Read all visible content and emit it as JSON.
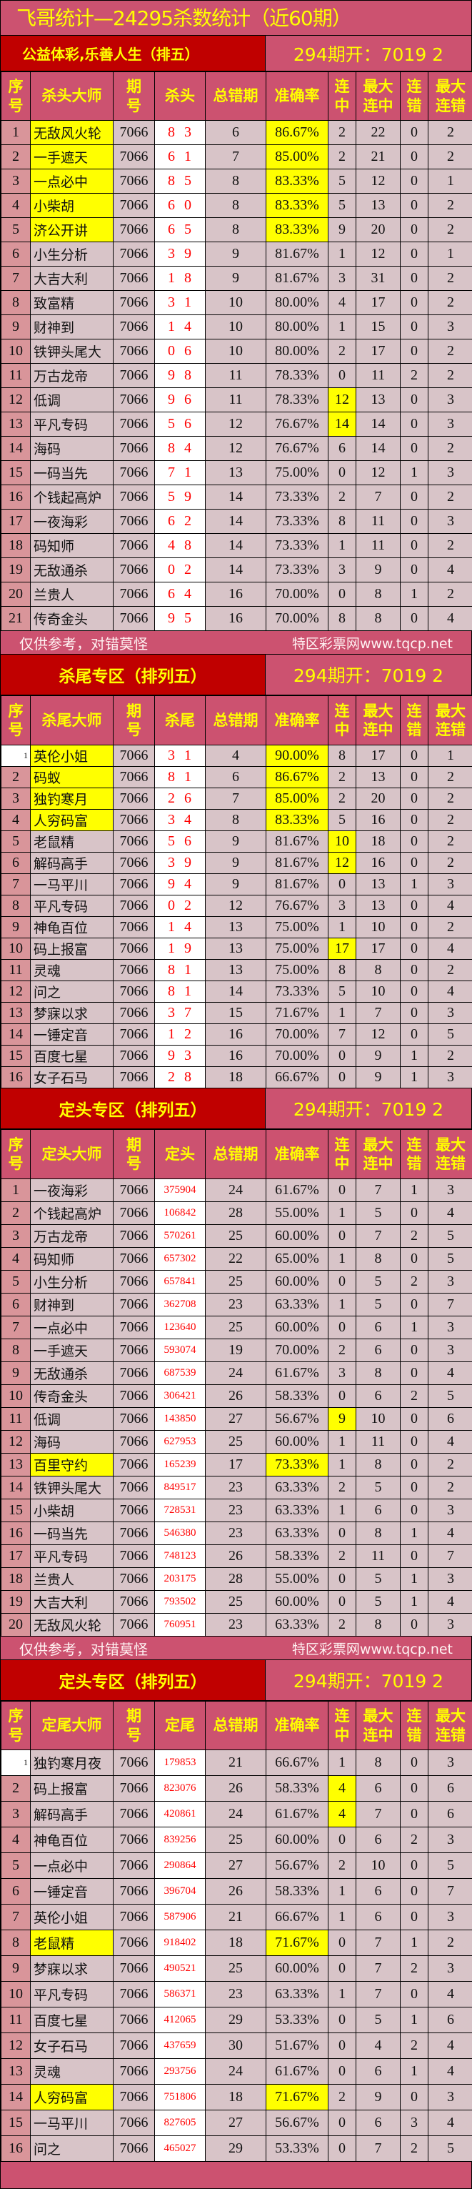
{
  "title": "飞哥统计—24295杀数统计（近60期）",
  "footer": {
    "left": "仅供参考，对错莫怪",
    "right": "特区彩票网www.tqcp.net"
  },
  "colors": {
    "header_bg": "#cc5270",
    "section_bg": "#c00000",
    "header_text": "#ffff00",
    "highlight": "#ffff00",
    "number_text": "#ff0000"
  },
  "sections": [
    {
      "title": "公益体彩,乐善人生（排五）",
      "open": "294期开：7019 2",
      "headers": [
        "序号",
        "杀头大师",
        "期号",
        "杀头",
        "总错期",
        "准确率",
        "连中",
        "最大连中",
        "连错",
        "最大连错"
      ],
      "highlight_name_acc": [
        1,
        2,
        3,
        4,
        5
      ],
      "highlight_streak": [
        12,
        13
      ],
      "first_seq_white": false,
      "rows": [
        [
          "1",
          "无敌风火轮",
          "7066",
          "8 3",
          "6",
          "86.67%",
          "2",
          "22",
          "0",
          "2"
        ],
        [
          "2",
          "一手遮天",
          "7066",
          "6 1",
          "7",
          "85.00%",
          "2",
          "21",
          "0",
          "2"
        ],
        [
          "3",
          "一点必中",
          "7066",
          "8 5",
          "8",
          "83.33%",
          "5",
          "12",
          "0",
          "1"
        ],
        [
          "4",
          "小柴胡",
          "7066",
          "6 0",
          "8",
          "83.33%",
          "5",
          "13",
          "0",
          "2"
        ],
        [
          "5",
          "济公开讲",
          "7066",
          "6 5",
          "8",
          "83.33%",
          "9",
          "20",
          "0",
          "2"
        ],
        [
          "6",
          "小生分析",
          "7066",
          "3 9",
          "9",
          "81.67%",
          "1",
          "12",
          "0",
          "1"
        ],
        [
          "7",
          "大吉大利",
          "7066",
          "1 8",
          "9",
          "81.67%",
          "3",
          "31",
          "0",
          "2"
        ],
        [
          "8",
          "致富精",
          "7066",
          "3 1",
          "10",
          "80.00%",
          "4",
          "17",
          "0",
          "2"
        ],
        [
          "9",
          "财神到",
          "7066",
          "1 4",
          "10",
          "80.00%",
          "1",
          "15",
          "0",
          "3"
        ],
        [
          "10",
          "铁钾头尾大",
          "7066",
          "0 6",
          "10",
          "80.00%",
          "2",
          "17",
          "0",
          "2"
        ],
        [
          "11",
          "万古龙帝",
          "7066",
          "9 8",
          "11",
          "78.33%",
          "0",
          "11",
          "2",
          "2"
        ],
        [
          "12",
          "低调",
          "7066",
          "9 6",
          "11",
          "78.33%",
          "12",
          "13",
          "0",
          "3"
        ],
        [
          "13",
          "平凡专码",
          "7066",
          "5 6",
          "12",
          "76.67%",
          "14",
          "14",
          "0",
          "3"
        ],
        [
          "14",
          "海码",
          "7066",
          "8 4",
          "12",
          "76.67%",
          "6",
          "14",
          "0",
          "2"
        ],
        [
          "15",
          "一码当先",
          "7066",
          "7 1",
          "13",
          "75.00%",
          "0",
          "12",
          "1",
          "3"
        ],
        [
          "16",
          "个钱起高炉",
          "7066",
          "5 9",
          "14",
          "73.33%",
          "2",
          "7",
          "0",
          "2"
        ],
        [
          "17",
          "一夜海彩",
          "7066",
          "6 2",
          "14",
          "73.33%",
          "8",
          "11",
          "0",
          "3"
        ],
        [
          "18",
          "码知师",
          "7066",
          "4 8",
          "14",
          "73.33%",
          "1",
          "11",
          "0",
          "2"
        ],
        [
          "19",
          "无敌通杀",
          "7066",
          "0 2",
          "14",
          "73.33%",
          "3",
          "9",
          "0",
          "4"
        ],
        [
          "20",
          "兰贵人",
          "7066",
          "6 4",
          "16",
          "70.00%",
          "0",
          "8",
          "1",
          "2"
        ],
        [
          "21",
          "传奇金头",
          "7066",
          "9 5",
          "16",
          "70.00%",
          "8",
          "8",
          "0",
          "4"
        ]
      ]
    },
    {
      "title": "杀尾专区（排列五）",
      "open": "294期开：7019 2",
      "headers": [
        "序号",
        "杀尾大师",
        "期号",
        "杀尾",
        "总错期",
        "准确率",
        "连中",
        "最大连中",
        "连错",
        "最大连错"
      ],
      "highlight_name_acc": [
        1,
        2,
        3,
        4
      ],
      "highlight_streak": [
        5,
        6,
        10
      ],
      "first_seq_white": true,
      "rows": [
        [
          "1",
          "英伦小姐",
          "7066",
          "3 1",
          "4",
          "90.00%",
          "8",
          "17",
          "0",
          "1"
        ],
        [
          "2",
          "码蚁",
          "7066",
          "8 1",
          "6",
          "86.67%",
          "2",
          "13",
          "0",
          "2"
        ],
        [
          "3",
          "独钓寒月",
          "7066",
          "2 6",
          "7",
          "85.00%",
          "2",
          "20",
          "0",
          "2"
        ],
        [
          "4",
          "人穷码富",
          "7066",
          "3 4",
          "8",
          "83.33%",
          "5",
          "16",
          "0",
          "2"
        ],
        [
          "5",
          "老鼠精",
          "7066",
          "5 6",
          "9",
          "81.67%",
          "10",
          "18",
          "0",
          "2"
        ],
        [
          "6",
          "解码高手",
          "7066",
          "3 9",
          "9",
          "81.67%",
          "12",
          "16",
          "0",
          "2"
        ],
        [
          "7",
          "一马平川",
          "7066",
          "9 4",
          "9",
          "81.67%",
          "0",
          "13",
          "1",
          "3"
        ],
        [
          "8",
          "平凡专码",
          "7066",
          "0 2",
          "12",
          "76.67%",
          "3",
          "13",
          "0",
          "4"
        ],
        [
          "9",
          "神龟百位",
          "7066",
          "1 4",
          "13",
          "75.00%",
          "1",
          "10",
          "0",
          "2"
        ],
        [
          "10",
          "码上报富",
          "7066",
          "1 9",
          "13",
          "75.00%",
          "17",
          "17",
          "0",
          "4"
        ],
        [
          "11",
          "灵魂",
          "7066",
          "8 1",
          "13",
          "75.00%",
          "8",
          "8",
          "0",
          "2"
        ],
        [
          "12",
          "问之",
          "7066",
          "8 1",
          "14",
          "73.33%",
          "5",
          "10",
          "0",
          "4"
        ],
        [
          "13",
          "梦寐以求",
          "7066",
          "3 7",
          "15",
          "71.67%",
          "1",
          "7",
          "0",
          "3"
        ],
        [
          "14",
          "一锤定音",
          "7066",
          "1 2",
          "16",
          "70.00%",
          "7",
          "12",
          "0",
          "5"
        ],
        [
          "15",
          "百度七星",
          "7066",
          "9 3",
          "16",
          "70.00%",
          "0",
          "9",
          "1",
          "2"
        ],
        [
          "16",
          "女子石马",
          "7066",
          "2 8",
          "18",
          "66.67%",
          "0",
          "9",
          "1",
          "3"
        ]
      ]
    },
    {
      "title": "定头专区（排列五）",
      "open": "294期开：7019 2",
      "headers": [
        "序号",
        "定头大师",
        "期号",
        "定头",
        "总错期",
        "准确率",
        "连中",
        "最大连中",
        "连错",
        "最大连错"
      ],
      "highlight_name_acc": [
        13
      ],
      "highlight_streak": [
        11
      ],
      "first_seq_white": false,
      "rows": [
        [
          "1",
          "一夜海彩",
          "7066",
          "375904",
          "24",
          "61.67%",
          "0",
          "7",
          "1",
          "3"
        ],
        [
          "2",
          "个钱起高炉",
          "7066",
          "106842",
          "28",
          "55.00%",
          "1",
          "5",
          "0",
          "4"
        ],
        [
          "3",
          "万古龙帝",
          "7066",
          "570261",
          "25",
          "60.00%",
          "0",
          "7",
          "2",
          "5"
        ],
        [
          "4",
          "码知师",
          "7066",
          "657302",
          "22",
          "65.00%",
          "1",
          "8",
          "0",
          "5"
        ],
        [
          "5",
          "小生分析",
          "7066",
          "657841",
          "25",
          "60.00%",
          "0",
          "5",
          "2",
          "3"
        ],
        [
          "6",
          "财神到",
          "7066",
          "362708",
          "23",
          "63.33%",
          "1",
          "5",
          "0",
          "7"
        ],
        [
          "7",
          "一点必中",
          "7066",
          "123640",
          "25",
          "60.00%",
          "0",
          "6",
          "1",
          "3"
        ],
        [
          "8",
          "一手遮天",
          "7066",
          "593074",
          "19",
          "70.00%",
          "2",
          "6",
          "0",
          "3"
        ],
        [
          "9",
          "无敌通杀",
          "7066",
          "687539",
          "24",
          "61.67%",
          "3",
          "8",
          "0",
          "4"
        ],
        [
          "10",
          "传奇金头",
          "7066",
          "306421",
          "26",
          "58.33%",
          "0",
          "6",
          "2",
          "5"
        ],
        [
          "11",
          "低调",
          "7066",
          "143850",
          "27",
          "56.67%",
          "9",
          "10",
          "0",
          "6"
        ],
        [
          "12",
          "海码",
          "7066",
          "627953",
          "25",
          "60.00%",
          "1",
          "11",
          "0",
          "4"
        ],
        [
          "13",
          "百里守约",
          "7066",
          "165239",
          "17",
          "73.33%",
          "1",
          "8",
          "0",
          "2"
        ],
        [
          "14",
          "铁钾头尾大",
          "7066",
          "849517",
          "23",
          "63.33%",
          "2",
          "5",
          "0",
          "2"
        ],
        [
          "15",
          "小柴胡",
          "7066",
          "728531",
          "23",
          "63.33%",
          "1",
          "6",
          "0",
          "3"
        ],
        [
          "16",
          "一码当先",
          "7066",
          "546380",
          "23",
          "63.33%",
          "0",
          "8",
          "1",
          "4"
        ],
        [
          "17",
          "平凡专码",
          "7066",
          "748123",
          "26",
          "58.33%",
          "2",
          "11",
          "0",
          "7"
        ],
        [
          "18",
          "兰贵人",
          "7066",
          "203175",
          "28",
          "55.00%",
          "0",
          "5",
          "1",
          "3"
        ],
        [
          "19",
          "大吉大利",
          "7066",
          "793502",
          "25",
          "60.00%",
          "0",
          "5",
          "1",
          "4"
        ],
        [
          "20",
          "无敌风火轮",
          "7066",
          "760951",
          "23",
          "63.33%",
          "2",
          "8",
          "0",
          "3"
        ]
      ]
    },
    {
      "title": "定头专区（排列五）",
      "open": "294期开：7019 2",
      "headers": [
        "序号",
        "定尾大师",
        "期号",
        "定尾",
        "总错期",
        "准确率",
        "连中",
        "最大连中",
        "连错",
        "最大连错"
      ],
      "highlight_name_acc": [
        8,
        14
      ],
      "highlight_streak": [
        2,
        3
      ],
      "first_seq_white": true,
      "rows": [
        [
          "1",
          "独钓寒月夜",
          "7066",
          "179853",
          "21",
          "66.67%",
          "1",
          "8",
          "0",
          "3"
        ],
        [
          "2",
          "码上报富",
          "7066",
          "823076",
          "26",
          "58.33%",
          "4",
          "6",
          "0",
          "6"
        ],
        [
          "3",
          "解码高手",
          "7066",
          "420861",
          "24",
          "61.67%",
          "4",
          "7",
          "0",
          "6"
        ],
        [
          "4",
          "神龟百位",
          "7066",
          "839256",
          "25",
          "60.00%",
          "0",
          "6",
          "2",
          "3"
        ],
        [
          "5",
          "一点必中",
          "7066",
          "290864",
          "27",
          "56.67%",
          "2",
          "10",
          "0",
          "5"
        ],
        [
          "6",
          "一锤定音",
          "7066",
          "396704",
          "26",
          "58.33%",
          "1",
          "6",
          "0",
          "7"
        ],
        [
          "7",
          "英伦小姐",
          "7066",
          "587906",
          "21",
          "66.67%",
          "1",
          "6",
          "0",
          "3"
        ],
        [
          "8",
          "老鼠精",
          "7066",
          "918402",
          "18",
          "71.67%",
          "0",
          "7",
          "1",
          "2"
        ],
        [
          "9",
          "梦寐以求",
          "7066",
          "490521",
          "25",
          "60.00%",
          "0",
          "7",
          "2",
          "3"
        ],
        [
          "10",
          "平凡专码",
          "7066",
          "586371",
          "23",
          "63.33%",
          "1",
          "7",
          "0",
          "4"
        ],
        [
          "11",
          "百度七星",
          "7066",
          "412065",
          "29",
          "53.33%",
          "0",
          "5",
          "1",
          "6"
        ],
        [
          "12",
          "女子石马",
          "7066",
          "437659",
          "30",
          "51.67%",
          "0",
          "4",
          "2",
          "4"
        ],
        [
          "13",
          "灵魂",
          "7066",
          "293756",
          "24",
          "61.67%",
          "0",
          "6",
          "1",
          "4"
        ],
        [
          "14",
          "人穷码富",
          "7066",
          "751806",
          "18",
          "71.67%",
          "2",
          "9",
          "0",
          "3"
        ],
        [
          "15",
          "一马平川",
          "7066",
          "827605",
          "27",
          "56.67%",
          "0",
          "6",
          "3",
          "4"
        ],
        [
          "16",
          "问之",
          "7066",
          "465027",
          "29",
          "53.33%",
          "0",
          "7",
          "2",
          "5"
        ]
      ]
    }
  ]
}
